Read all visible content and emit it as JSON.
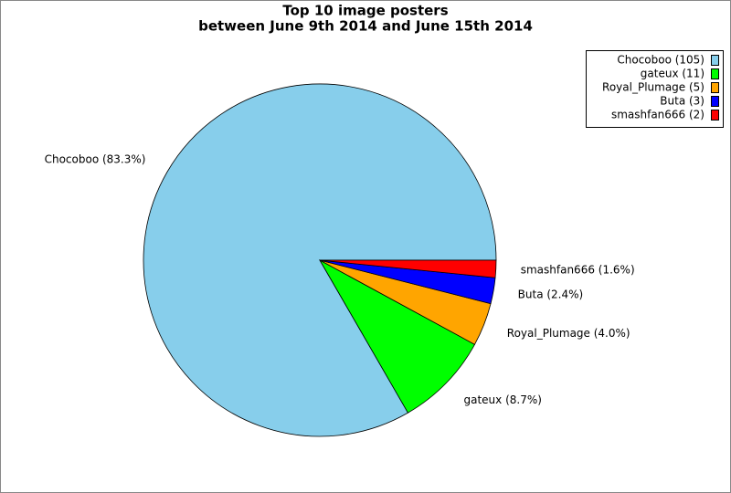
{
  "chart_data": {
    "type": "pie",
    "title": "Top 10 image posters",
    "subtitle": "between June 9th 2014 and June 15th 2014",
    "categories": [
      "Chocoboo (105)",
      "gateux (11)",
      "Royal_Plumage (5)",
      "Buta (3)",
      "smashfan666 (2)"
    ],
    "values": [
      105,
      11,
      5,
      3,
      2
    ],
    "slice_labels": [
      "Chocoboo (83.3%)",
      "gateux (8.7%)",
      "Royal_Plumage (4.0%)",
      "Buta (2.4%)",
      "smashfan666 (1.6%)"
    ],
    "colors": [
      "#87ceeb",
      "#00ff00",
      "#ffa500",
      "#0000ff",
      "#ff0000"
    ],
    "legend": "upper right"
  }
}
